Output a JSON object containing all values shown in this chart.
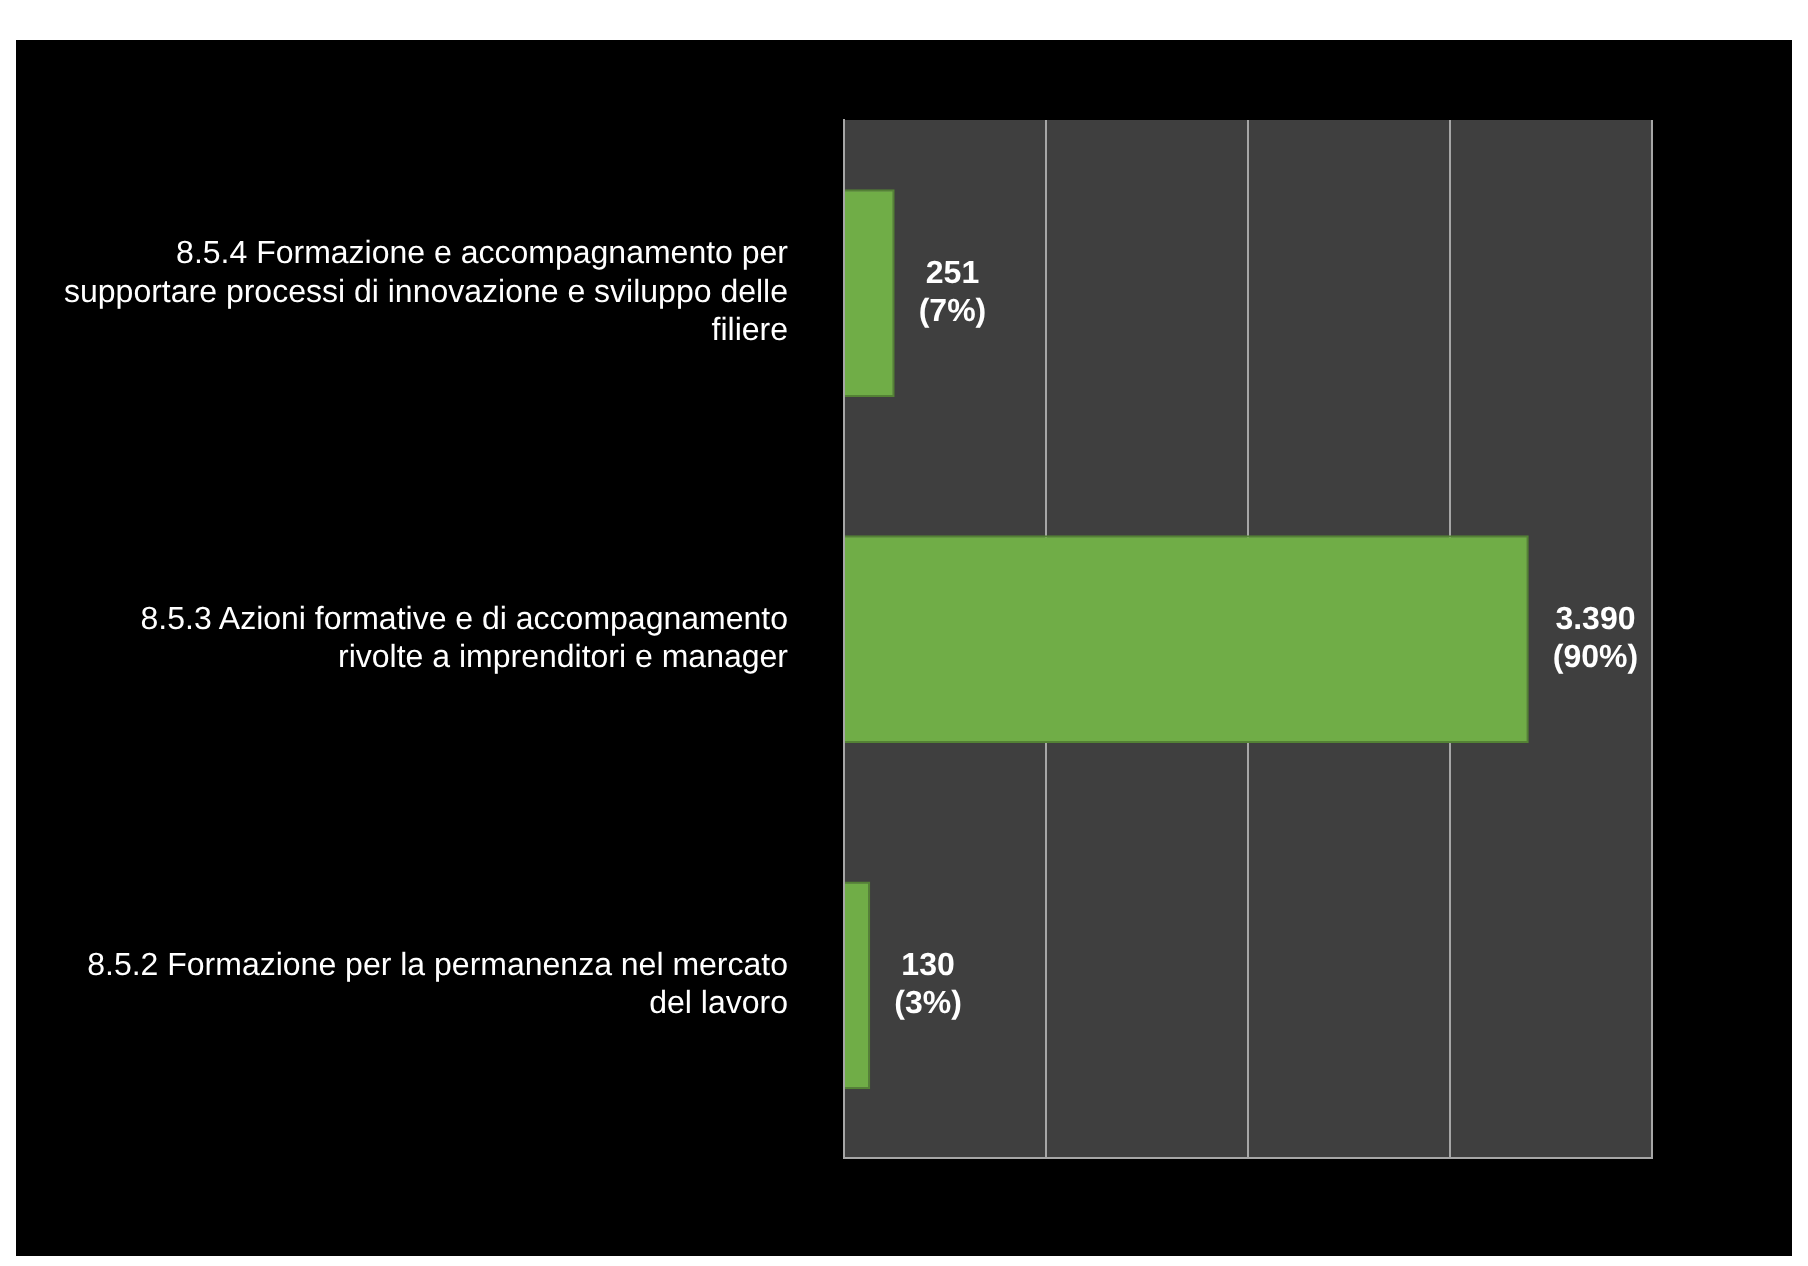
{
  "chart_data": {
    "type": "bar",
    "orientation": "horizontal",
    "categories": [
      "8.5.4 Formazione e accompagnamento per supportare processi di innovazione e sviluppo delle filiere",
      "8.5.3 Azioni formative e di accompagnamento rivolte a imprenditori e manager",
      "8.5.2 Formazione per la permanenza nel mercato del lavoro"
    ],
    "values": [
      251,
      3390,
      130
    ],
    "value_labels": [
      "251\n(7%)",
      "3.390\n(90%)",
      "130\n(3%)"
    ],
    "color": "#70ad47",
    "xlim": [
      0,
      4000
    ],
    "xticks": [
      {
        "value": 0,
        "label": null
      },
      {
        "value": 1000,
        "label": null
      },
      {
        "value": 2000,
        "label": null
      },
      {
        "value": 3000,
        "label": null
      },
      {
        "value": 4000,
        "label": null
      }
    ],
    "grid": "x",
    "tick_labels": "y",
    "legend": false
  }
}
